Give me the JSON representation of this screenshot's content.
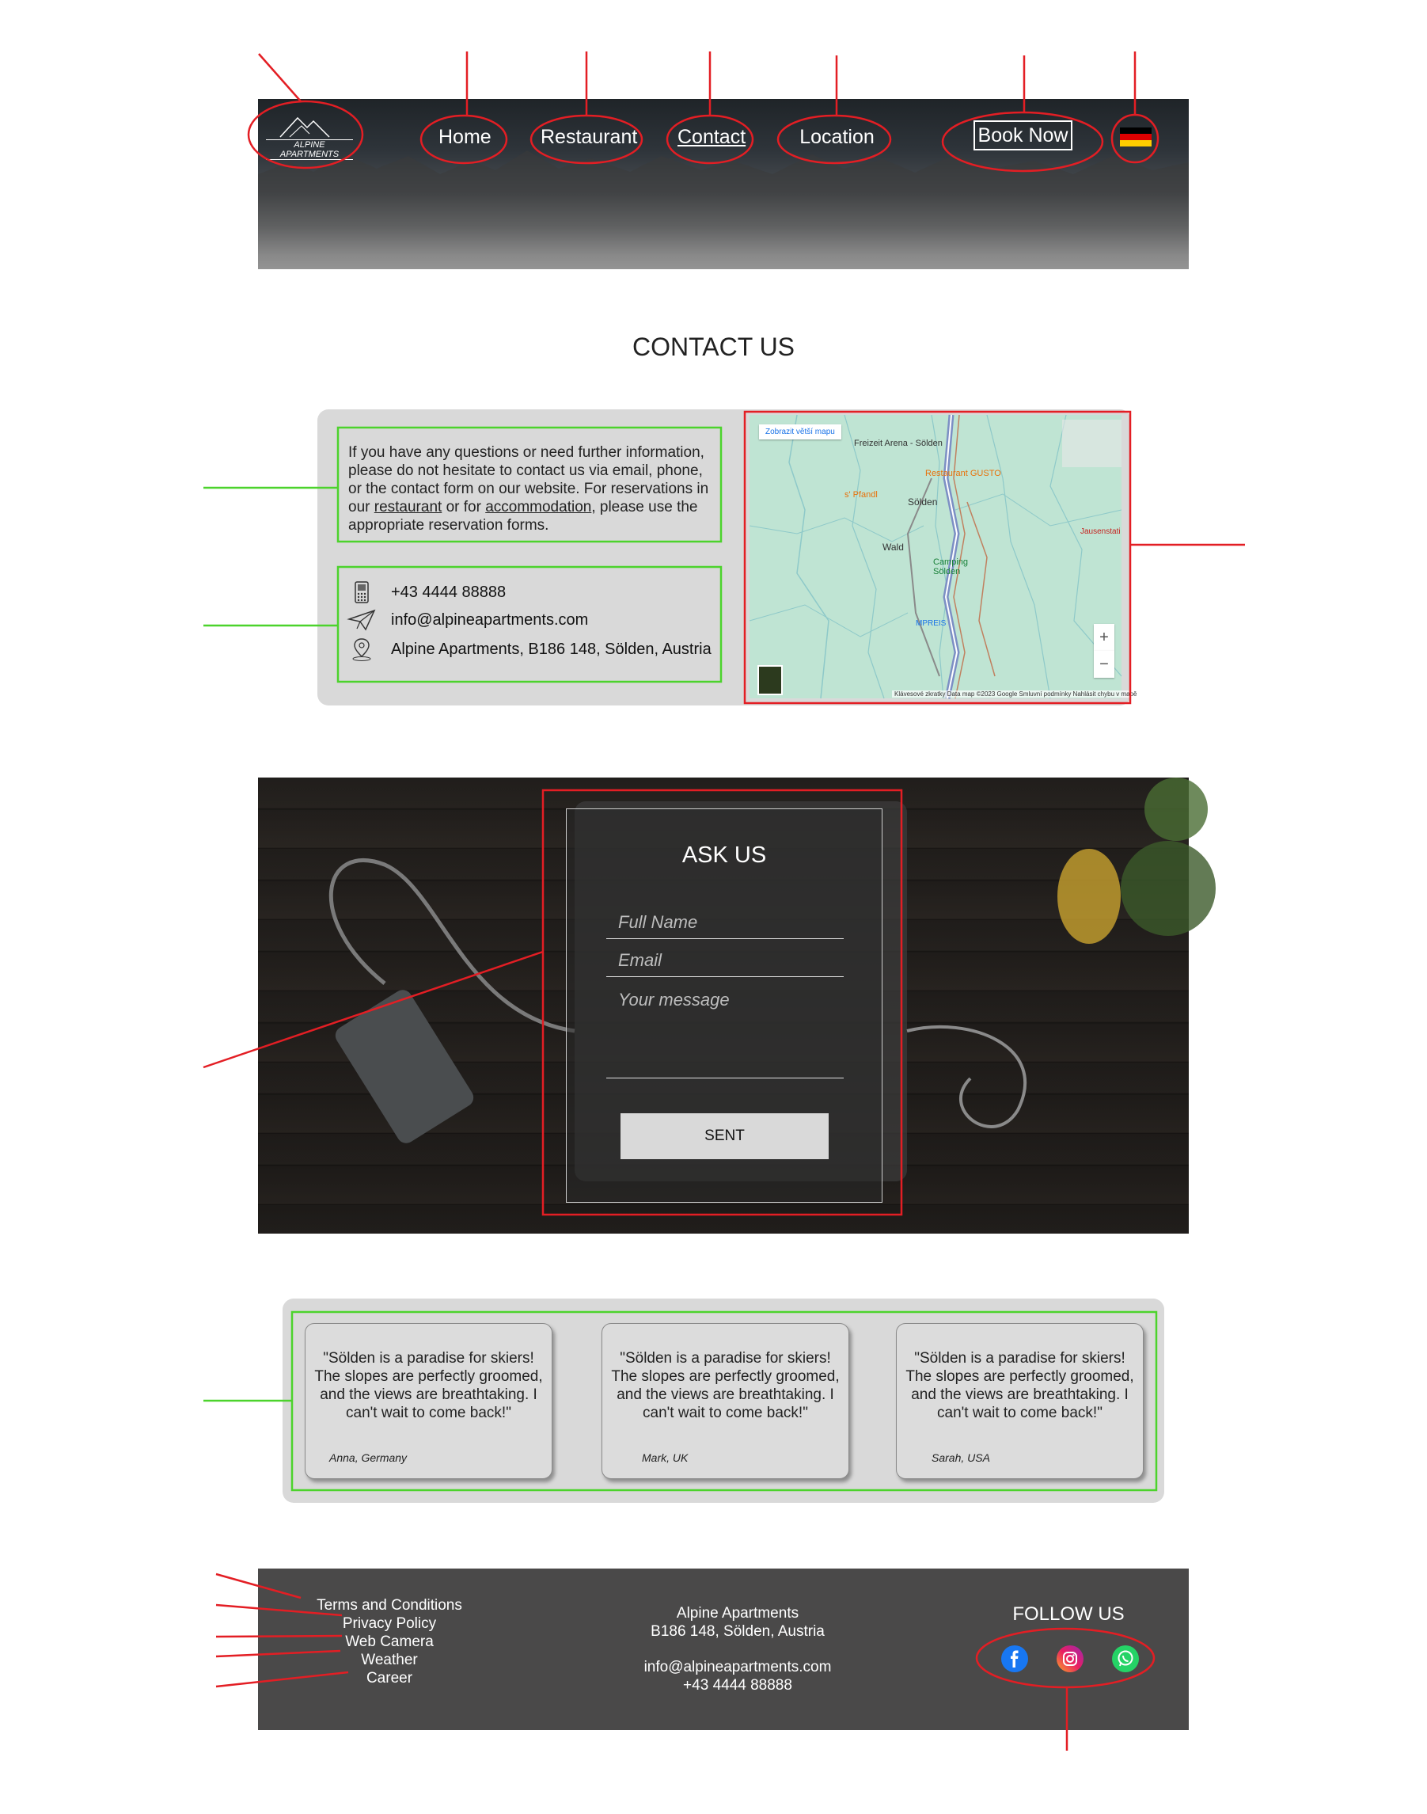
{
  "header": {
    "logo_text": "ALPINE APARTMENTS",
    "nav": [
      "Home",
      "Restaurant",
      "Contact",
      "Location"
    ],
    "book_now": "Book Now",
    "language_flag": "de-flag-icon"
  },
  "contact": {
    "title": "CONTACT US",
    "intro_before_restaurant": "If you have any questions or need further information, please do not hesitate to contact us via email, phone, or the contact form on our website. For reservations in our ",
    "restaurant_link": "restaurant",
    "intro_middle": " or for ",
    "accommodation_link": "accommodation",
    "intro_after": ", please use the appropriate reservation forms.",
    "phone": "+43 4444 88888",
    "email": "info@alpineapartments.com",
    "address": "Alpine Apartments, B186 148, Sölden, Austria"
  },
  "map": {
    "enlarge_button": "Zobrazit větší mapu",
    "labels": {
      "freizeit": "Freizeit Arena - Sölden",
      "gusto": "Restaurant GUSTO",
      "pfandl": "s' Pfandl",
      "solden": "Sölden",
      "wald": "Wald",
      "camping": "Camping Sölden",
      "jausen": "Jausenstati",
      "mpreis": "MPREIS"
    },
    "zoom_in": "+",
    "zoom_out": "−",
    "footer": "Klávesové zkratky   Data map ©2023 Google   Smluvní podmínky   Nahlásit chybu v mapě"
  },
  "ask": {
    "title": "ASK US",
    "full_name_placeholder": "Full Name",
    "email_placeholder": "Email",
    "message_placeholder": "Your message",
    "send_label": "SENT"
  },
  "testimonials": [
    {
      "quote": "\"Sölden is a paradise for skiers! The slopes are perfectly groomed, and the views are breathtaking. I can't wait to come back!\"",
      "author": "Anna, Germany"
    },
    {
      "quote": "\"Sölden is a paradise for skiers! The slopes are perfectly groomed, and the views are breathtaking. I can't wait to come back!\"",
      "author": "Mark, UK"
    },
    {
      "quote": "\"Sölden is a paradise for skiers! The slopes are perfectly groomed, and the views are breathtaking. I can't wait to come back!\"",
      "author": "Sarah, USA"
    }
  ],
  "footer": {
    "links": [
      "Terms and Conditions",
      "Privacy Policy",
      "Web Camera",
      "Weather",
      "Career"
    ],
    "company": "Alpine Apartments",
    "street": "B186 148, Sölden, Austria",
    "email": "info@alpineapartments.com",
    "phone": "+43 4444 88888",
    "follow_title": "FOLLOW US",
    "social": [
      "facebook-icon",
      "instagram-icon",
      "whatsapp-icon"
    ]
  },
  "colors": {
    "annotation_red": "#e31e24",
    "annotation_green": "#4cd32c",
    "panel_grey": "#d9d9d9",
    "footer_grey": "#4a4949"
  }
}
